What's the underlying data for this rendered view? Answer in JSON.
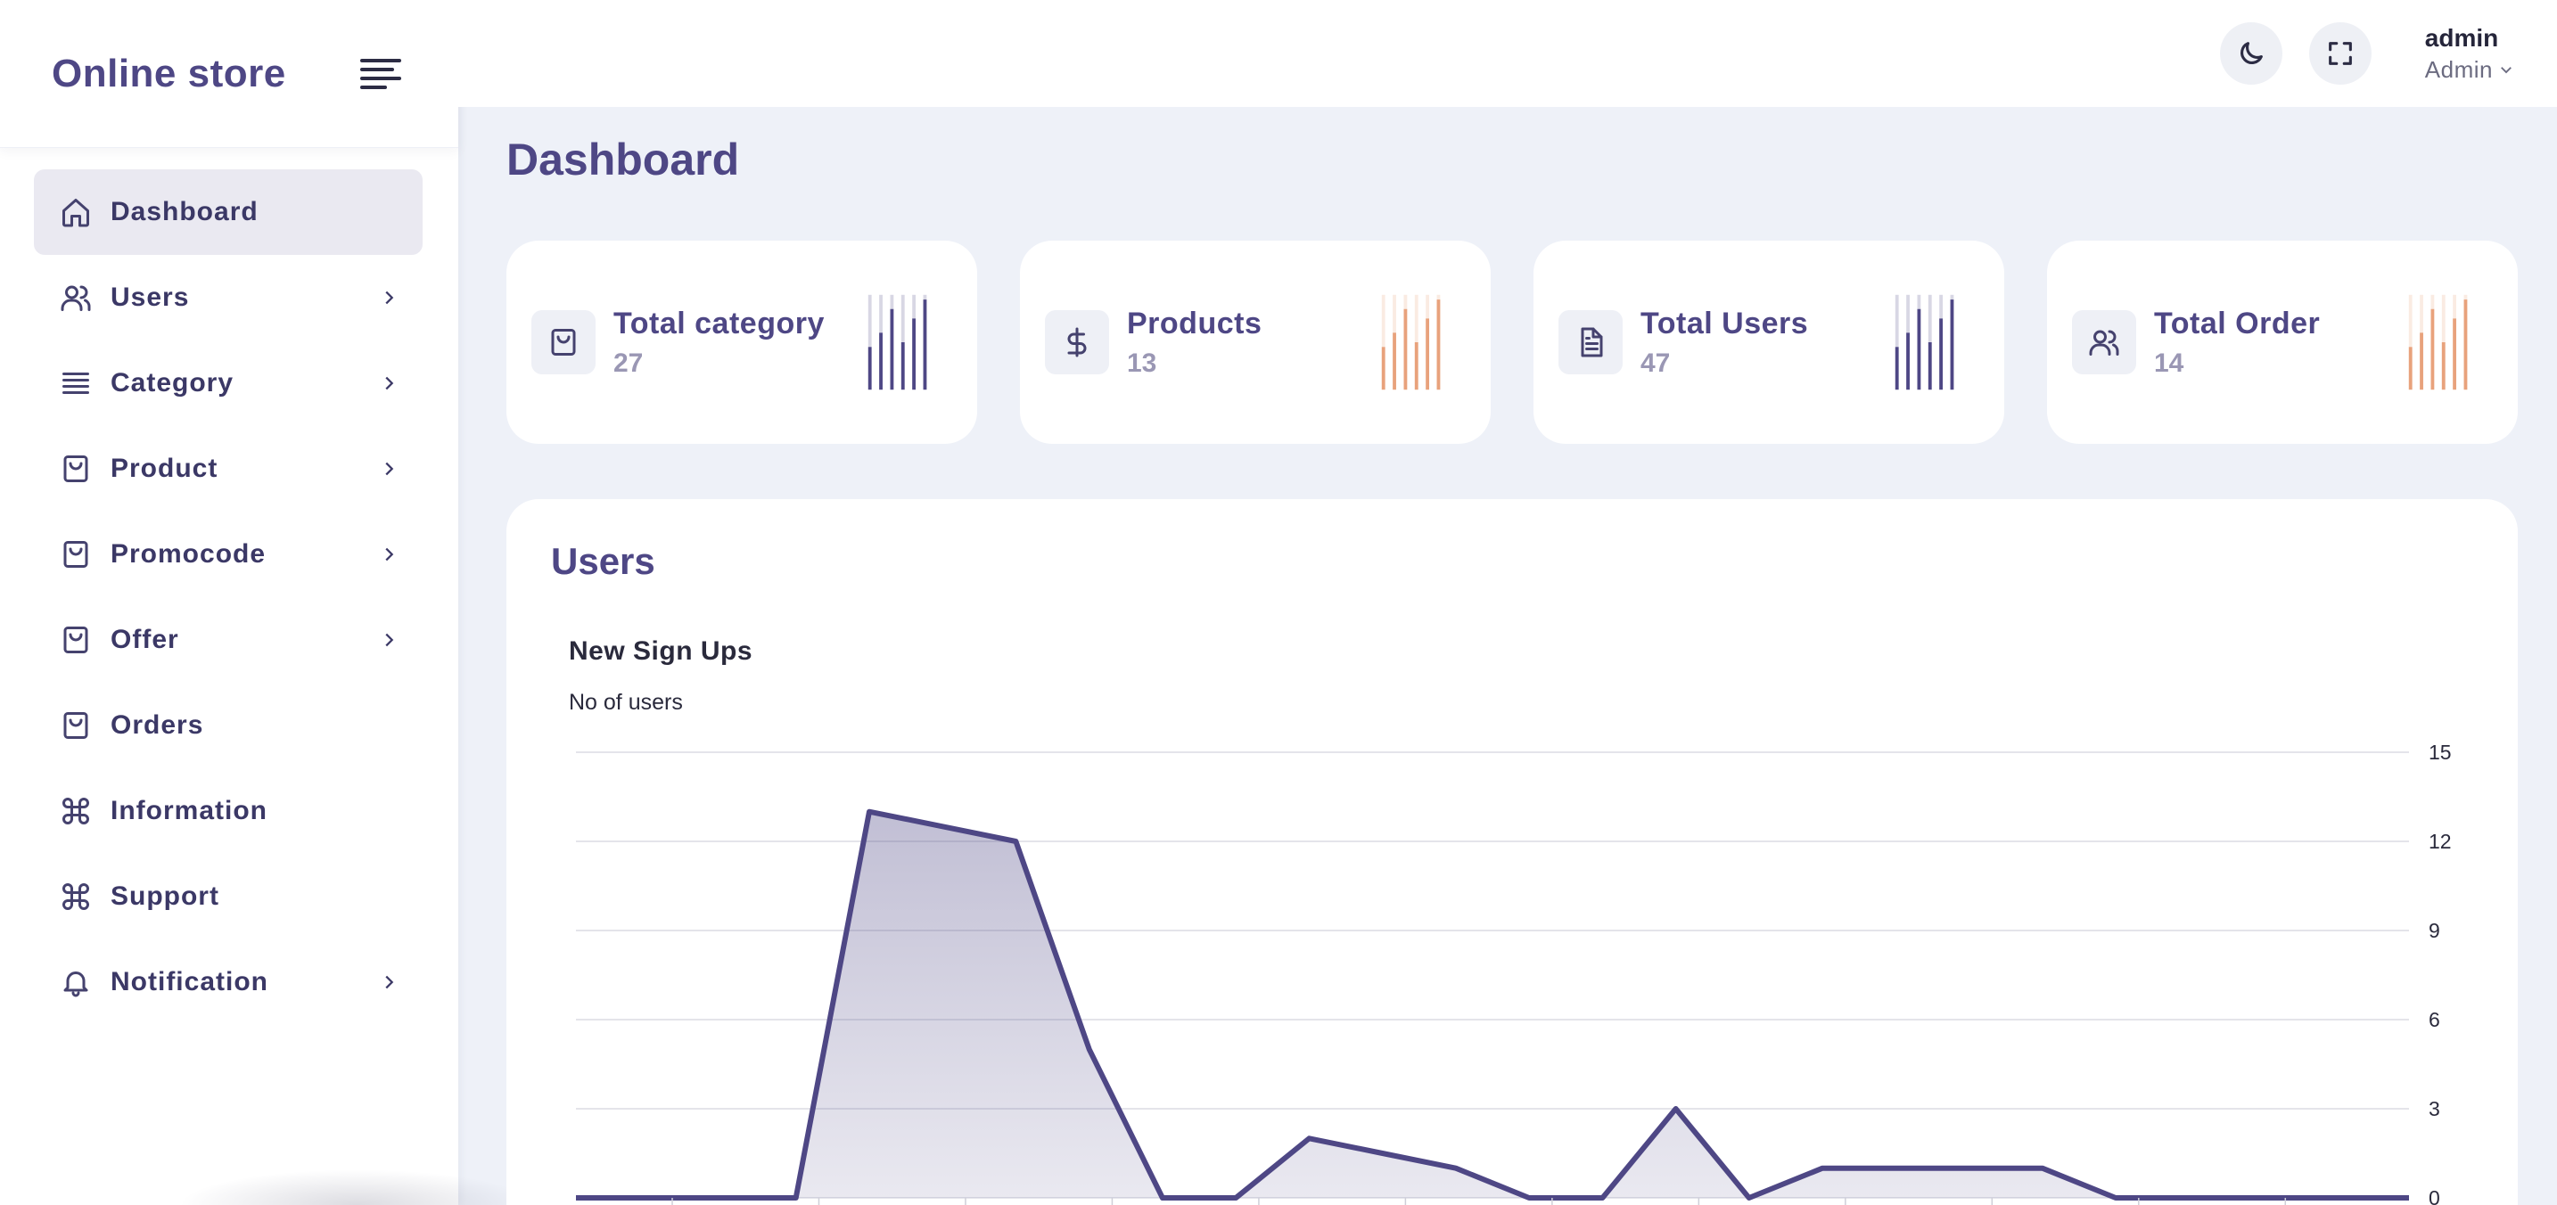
{
  "brand": {
    "name": "Online store"
  },
  "sidebar": {
    "items": [
      {
        "label": "Dashboard",
        "icon": "home-icon",
        "has_chevron": false,
        "active": true
      },
      {
        "label": "Users",
        "icon": "users-icon",
        "has_chevron": true
      },
      {
        "label": "Category",
        "icon": "list-icon",
        "has_chevron": true
      },
      {
        "label": "Product",
        "icon": "bag-icon",
        "has_chevron": true
      },
      {
        "label": "Promocode",
        "icon": "bag-icon",
        "has_chevron": true
      },
      {
        "label": "Offer",
        "icon": "bag-icon",
        "has_chevron": true
      },
      {
        "label": "Orders",
        "icon": "bag-icon",
        "has_chevron": false
      },
      {
        "label": "Information",
        "icon": "command-icon",
        "has_chevron": false
      },
      {
        "label": "Support",
        "icon": "command-icon",
        "has_chevron": false
      },
      {
        "label": "Notification",
        "icon": "bell-icon",
        "has_chevron": true
      }
    ]
  },
  "header": {
    "theme_toggle_icon": "moon-icon",
    "fullscreen_icon": "fullscreen-icon",
    "user": {
      "name": "admin",
      "role": "Admin"
    }
  },
  "page": {
    "title": "Dashboard"
  },
  "stats": [
    {
      "title": "Total category",
      "value": "27",
      "icon": "bag-icon",
      "bar_color": "#4e4785"
    },
    {
      "title": "Products",
      "value": "13",
      "icon": "dollar-icon",
      "bar_color": "#e8a27c"
    },
    {
      "title": "Total Users",
      "value": "47",
      "icon": "file-icon",
      "bar_color": "#4e4785"
    },
    {
      "title": "Total Order",
      "value": "14",
      "icon": "users-icon",
      "bar_color": "#e8a27c"
    }
  ],
  "users_panel": {
    "title": "Users"
  },
  "chart_data": {
    "type": "area",
    "title": "New Sign Ups",
    "subtitle": "No of users",
    "ylim": [
      0,
      15
    ],
    "yticks": [
      0,
      3,
      6,
      9,
      12,
      15
    ],
    "y_axis_position": "right",
    "grid": true,
    "values": [
      0,
      0,
      0,
      0,
      13,
      12.5,
      12,
      5,
      0,
      0,
      2,
      1.5,
      1,
      0,
      0,
      3,
      0,
      1,
      1,
      1,
      1,
      0,
      0,
      0,
      0,
      0
    ],
    "colors": {
      "line": "#4e4785",
      "fill": "#4e4785"
    }
  }
}
